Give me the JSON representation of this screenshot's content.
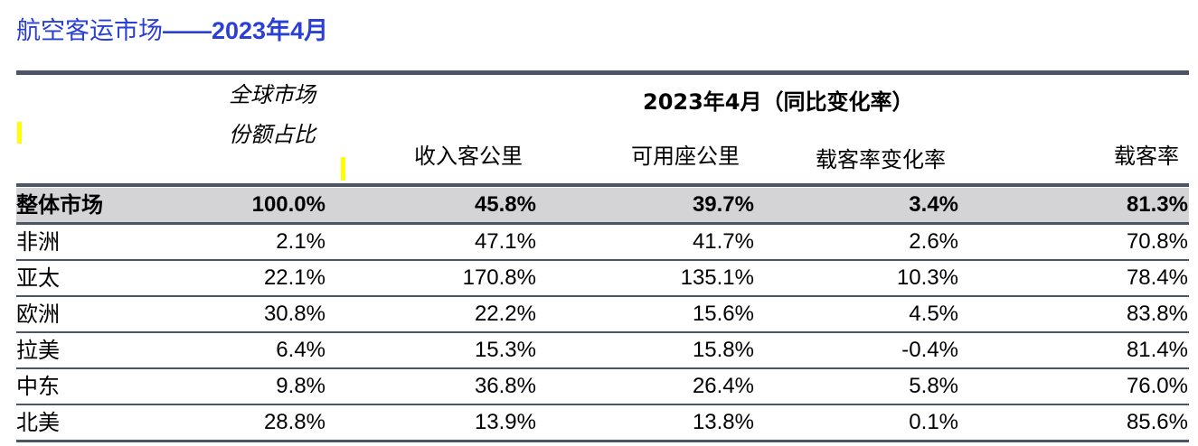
{
  "title": {
    "text": "航空客运市场",
    "dash": "——",
    "period": "2023年4月"
  },
  "header": {
    "share_line1": "全球市场",
    "share_line2": "份额占比",
    "group": "2023年4月（同比变化率）",
    "col_rpk": "收入客公里",
    "col_ask": "可用座公里",
    "col_lf_change": "载客率变化率",
    "col_lf": "载客率"
  },
  "rows": [
    {
      "region": "整体市场",
      "share": "100.0%",
      "rpk": "45.8%",
      "ask": "39.7%",
      "lf_change": "3.4%",
      "lf": "81.3%"
    },
    {
      "region": "非洲",
      "share": "2.1%",
      "rpk": "47.1%",
      "ask": "41.7%",
      "lf_change": "2.6%",
      "lf": "70.8%"
    },
    {
      "region": "亚太",
      "share": "22.1%",
      "rpk": "170.8%",
      "ask": "135.1%",
      "lf_change": "10.3%",
      "lf": "78.4%"
    },
    {
      "region": "欧洲",
      "share": "30.8%",
      "rpk": "22.2%",
      "ask": "15.6%",
      "lf_change": "4.5%",
      "lf": "83.8%"
    },
    {
      "region": "拉美",
      "share": "6.4%",
      "rpk": "15.3%",
      "ask": "15.8%",
      "lf_change": "-0.4%",
      "lf": "81.4%"
    },
    {
      "region": "中东",
      "share": "9.8%",
      "rpk": "36.8%",
      "ask": "26.4%",
      "lf_change": "5.8%",
      "lf": "76.0%"
    },
    {
      "region": "北美",
      "share": "28.8%",
      "rpk": "13.9%",
      "ask": "13.8%",
      "lf_change": "0.1%",
      "lf": "85.6%"
    }
  ]
}
